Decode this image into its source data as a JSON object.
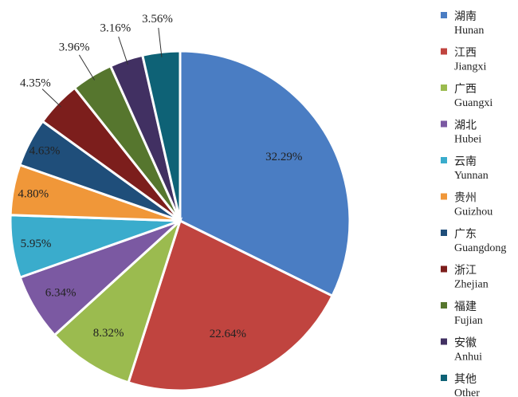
{
  "chart_data": {
    "type": "pie",
    "title": "",
    "legend_position": "right",
    "slices": [
      {
        "name_zh": "湖南",
        "name_en": "Hunan",
        "value": 32.29,
        "label": "32.29%",
        "color": "#4a7dc3"
      },
      {
        "name_zh": "江西",
        "name_en": "Jiangxi",
        "value": 22.64,
        "label": "22.64%",
        "color": "#c0443f"
      },
      {
        "name_zh": "广西",
        "name_en": "Guangxi",
        "value": 8.32,
        "label": "8.32%",
        "color": "#9bbb4f"
      },
      {
        "name_zh": "湖北",
        "name_en": "Hubei",
        "value": 6.34,
        "label": "6.34%",
        "color": "#7b59a2"
      },
      {
        "name_zh": "云南",
        "name_en": "Yunnan",
        "value": 5.95,
        "label": "5.95%",
        "color": "#3aaccc"
      },
      {
        "name_zh": "贵州",
        "name_en": "Guizhou",
        "value": 4.8,
        "label": "4.80%",
        "color": "#f09739"
      },
      {
        "name_zh": "广东",
        "name_en": "Guangdong",
        "value": 4.63,
        "label": "4.63%",
        "color": "#1f4e7a"
      },
      {
        "name_zh": "浙江",
        "name_en": "Zhejian",
        "value": 4.35,
        "label": "4.35%",
        "color": "#7c1e1c"
      },
      {
        "name_zh": "福建",
        "name_en": "Fujian",
        "value": 3.96,
        "label": "3.96%",
        "color": "#56762e"
      },
      {
        "name_zh": "安徽",
        "name_en": "Anhui",
        "value": 3.16,
        "label": "3.16%",
        "color": "#413062"
      },
      {
        "name_zh": "其他",
        "name_en": "Other",
        "value": 3.56,
        "label": "3.56%",
        "color": "#0e6276"
      }
    ]
  }
}
